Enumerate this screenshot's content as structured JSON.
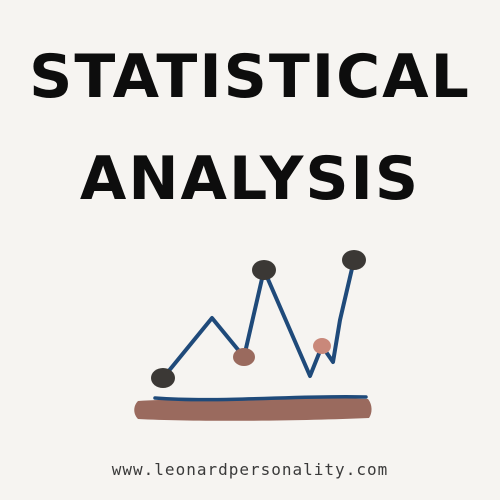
{
  "title": {
    "line1": "STATISTICAL",
    "line2": "ANALYSIS"
  },
  "footer": {
    "url": "www.leonardpersonality.com"
  },
  "colors": {
    "background": "#f6f4f1",
    "title": "#0d0d0d",
    "line": "#1f4a7a",
    "dot_dark": "#3b3835",
    "dot_pink": "#c9887a",
    "dot_rose": "#9a6a5e",
    "base": "#9a6a5e"
  },
  "illustration": {
    "icon": "line-chart-doodle-icon"
  }
}
